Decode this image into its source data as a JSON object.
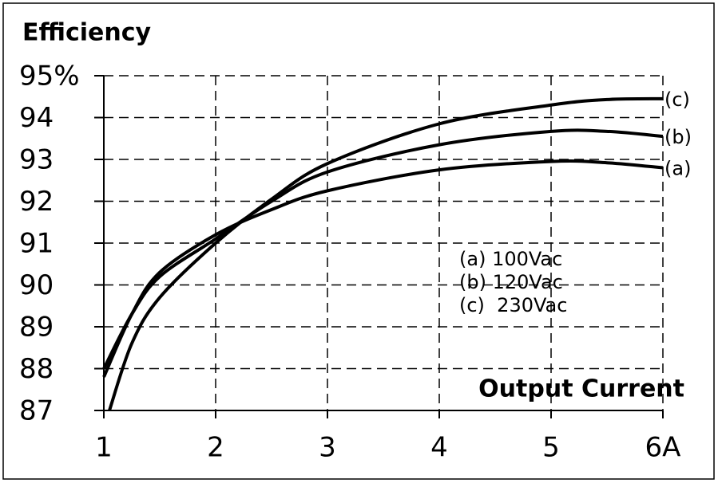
{
  "chart_data": {
    "type": "line",
    "title": "Efficiency",
    "x_label": "Output Current",
    "notes": [
      "(a) 100Vac",
      "(b) 120Vac",
      "(c)  230Vac"
    ],
    "xlim": [
      1,
      6
    ],
    "xticks": [
      1,
      2,
      3,
      4,
      5,
      {
        "value": 6,
        "label": "6A"
      }
    ],
    "ylim": [
      87,
      95
    ],
    "yticks": [
      87,
      88,
      89,
      90,
      91,
      92,
      93,
      94,
      {
        "value": 95,
        "label": "95%"
      }
    ],
    "grid": true,
    "series": [
      {
        "name": "(a)",
        "color": "#000000",
        "x": [
          1,
          1.25,
          1.5,
          2,
          2.5,
          3,
          4,
          5,
          5.5,
          6
        ],
        "values": [
          87.8,
          89.3,
          90.3,
          91.2,
          91.8,
          92.25,
          92.75,
          92.95,
          92.92,
          92.8
        ]
      },
      {
        "name": "(b)",
        "color": "#000000",
        "x": [
          1,
          1.25,
          1.5,
          2,
          2.5,
          3,
          4,
          5,
          5.5,
          6
        ],
        "values": [
          88.0,
          89.3,
          90.2,
          91.1,
          92.0,
          92.7,
          93.35,
          93.67,
          93.67,
          93.55
        ]
      },
      {
        "name": "(c)",
        "color": "#000000",
        "x": [
          1.05,
          1.25,
          1.5,
          2,
          2.5,
          3,
          4,
          5,
          5.5,
          6
        ],
        "values": [
          87.0,
          88.6,
          89.7,
          91.0,
          92.05,
          92.9,
          93.85,
          94.3,
          94.43,
          94.45
        ]
      }
    ]
  }
}
